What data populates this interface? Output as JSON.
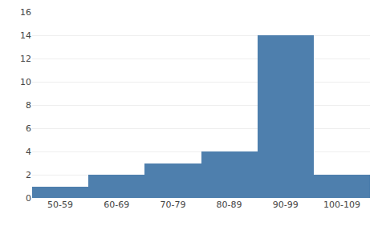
{
  "chart_data": {
    "type": "bar",
    "categories": [
      "50-59",
      "60-69",
      "70-79",
      "80-89",
      "90-99",
      "100-109"
    ],
    "values": [
      1,
      2,
      3,
      4,
      14,
      2
    ],
    "color": "#4e7fad",
    "ylim": [
      0,
      16
    ],
    "yticks": [
      0,
      2,
      4,
      6,
      8,
      10,
      12,
      14,
      16
    ],
    "grid": true
  }
}
